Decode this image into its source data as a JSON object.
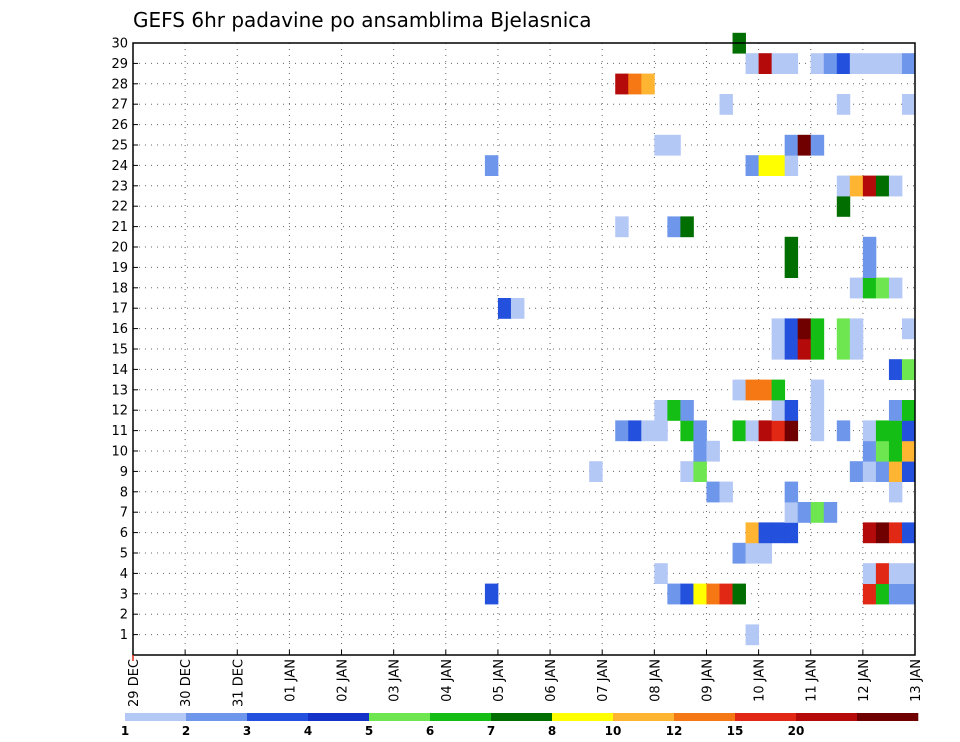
{
  "chart_data": {
    "type": "heatmap",
    "title": "GEFS 6hr padavine po ansamblima Bjelasnica",
    "x_tick_labels": [
      "29 DEC",
      "30 DEC",
      "31 DEC",
      "01 JAN",
      "02 JAN",
      "03 JAN",
      "04 JAN",
      "05 JAN",
      "06 JAN",
      "07 JAN",
      "08 JAN",
      "09 JAN",
      "10 JAN",
      "11 JAN",
      "12 JAN",
      "13 JAN"
    ],
    "y_tick_labels": [
      "1",
      "2",
      "3",
      "4",
      "5",
      "6",
      "7",
      "8",
      "9",
      "10",
      "11",
      "12",
      "13",
      "14",
      "15",
      "16",
      "17",
      "18",
      "19",
      "20",
      "21",
      "22",
      "23",
      "24",
      "25",
      "26",
      "27",
      "28",
      "29",
      "30"
    ],
    "xlim": [
      0,
      60
    ],
    "ylim": [
      0,
      30
    ],
    "grid": true,
    "legend": {
      "placement": "bottom",
      "colors": [
        "#b4c8f5",
        "#6e96eb",
        "#2350dc",
        "#1432c8",
        "#6ee650",
        "#14be14",
        "#006e00",
        "#ffff00",
        "#ffb432",
        "#f57814",
        "#e12814",
        "#b40a0a",
        "#700000"
      ],
      "labels": [
        "1",
        "2",
        "3",
        "4",
        "5",
        "6",
        "7",
        "8",
        "10",
        "12",
        "15",
        "20"
      ]
    },
    "cells": [
      {
        "m": 1,
        "t": 47,
        "v": 1
      },
      {
        "m": 3,
        "t": 27,
        "v": 3
      },
      {
        "m": 3,
        "t": 41,
        "v": 2
      },
      {
        "m": 3,
        "t": 42,
        "v": 3
      },
      {
        "m": 3,
        "t": 43,
        "v": 8
      },
      {
        "m": 3,
        "t": 44,
        "v": 12
      },
      {
        "m": 3,
        "t": 45,
        "v": 15
      },
      {
        "m": 3,
        "t": 46,
        "v": 7
      },
      {
        "m": 3,
        "t": 56,
        "v": 15
      },
      {
        "m": 3,
        "t": 57,
        "v": 6
      },
      {
        "m": 3,
        "t": 58,
        "v": 2
      },
      {
        "m": 3,
        "t": 59,
        "v": 2
      },
      {
        "m": 4,
        "t": 40,
        "v": 1
      },
      {
        "m": 4,
        "t": 56,
        "v": 1
      },
      {
        "m": 4,
        "t": 57,
        "v": 15
      },
      {
        "m": 4,
        "t": 58,
        "v": 1
      },
      {
        "m": 4,
        "t": 59,
        "v": 1
      },
      {
        "m": 5,
        "t": 46,
        "v": 2
      },
      {
        "m": 5,
        "t": 47,
        "v": 1
      },
      {
        "m": 5,
        "t": 48,
        "v": 1
      },
      {
        "m": 6,
        "t": 47,
        "v": 10
      },
      {
        "m": 6,
        "t": 48,
        "v": 3
      },
      {
        "m": 6,
        "t": 49,
        "v": 3
      },
      {
        "m": 6,
        "t": 50,
        "v": 3
      },
      {
        "m": 6,
        "t": 56,
        "v": 20
      },
      {
        "m": 6,
        "t": 57,
        "v": 30
      },
      {
        "m": 6,
        "t": 58,
        "v": 15
      },
      {
        "m": 6,
        "t": 59,
        "v": 3
      },
      {
        "m": 7,
        "t": 50,
        "v": 1
      },
      {
        "m": 7,
        "t": 51,
        "v": 2
      },
      {
        "m": 7,
        "t": 52,
        "v": 5
      },
      {
        "m": 7,
        "t": 53,
        "v": 2
      },
      {
        "m": 8,
        "t": 44,
        "v": 2
      },
      {
        "m": 8,
        "t": 45,
        "v": 1
      },
      {
        "m": 8,
        "t": 50,
        "v": 2
      },
      {
        "m": 8,
        "t": 58,
        "v": 1
      },
      {
        "m": 9,
        "t": 35,
        "v": 1
      },
      {
        "m": 9,
        "t": 42,
        "v": 1
      },
      {
        "m": 9,
        "t": 43,
        "v": 5
      },
      {
        "m": 9,
        "t": 55,
        "v": 2
      },
      {
        "m": 9,
        "t": 56,
        "v": 1
      },
      {
        "m": 9,
        "t": 57,
        "v": 2
      },
      {
        "m": 9,
        "t": 58,
        "v": 10
      },
      {
        "m": 9,
        "t": 59,
        "v": 3
      },
      {
        "m": 10,
        "t": 43,
        "v": 2
      },
      {
        "m": 10,
        "t": 44,
        "v": 1
      },
      {
        "m": 10,
        "t": 56,
        "v": 2
      },
      {
        "m": 10,
        "t": 57,
        "v": 5
      },
      {
        "m": 10,
        "t": 58,
        "v": 6
      },
      {
        "m": 10,
        "t": 59,
        "v": 10
      },
      {
        "m": 11,
        "t": 37,
        "v": 2
      },
      {
        "m": 11,
        "t": 38,
        "v": 3
      },
      {
        "m": 11,
        "t": 39,
        "v": 1
      },
      {
        "m": 11,
        "t": 40,
        "v": 1
      },
      {
        "m": 11,
        "t": 42,
        "v": 6
      },
      {
        "m": 11,
        "t": 43,
        "v": 2
      },
      {
        "m": 11,
        "t": 46,
        "v": 6
      },
      {
        "m": 11,
        "t": 47,
        "v": 1
      },
      {
        "m": 11,
        "t": 48,
        "v": 20
      },
      {
        "m": 11,
        "t": 49,
        "v": 15
      },
      {
        "m": 11,
        "t": 50,
        "v": 30
      },
      {
        "m": 11,
        "t": 52,
        "v": 1
      },
      {
        "m": 11,
        "t": 54,
        "v": 2
      },
      {
        "m": 11,
        "t": 56,
        "v": 1
      },
      {
        "m": 11,
        "t": 57,
        "v": 6
      },
      {
        "m": 11,
        "t": 58,
        "v": 6
      },
      {
        "m": 11,
        "t": 59,
        "v": 3
      },
      {
        "m": 12,
        "t": 40,
        "v": 1
      },
      {
        "m": 12,
        "t": 41,
        "v": 6
      },
      {
        "m": 12,
        "t": 42,
        "v": 2
      },
      {
        "m": 12,
        "t": 49,
        "v": 1
      },
      {
        "m": 12,
        "t": 50,
        "v": 3
      },
      {
        "m": 12,
        "t": 52,
        "v": 1
      },
      {
        "m": 12,
        "t": 58,
        "v": 2
      },
      {
        "m": 12,
        "t": 59,
        "v": 6
      },
      {
        "m": 13,
        "t": 46,
        "v": 1
      },
      {
        "m": 13,
        "t": 47,
        "v": 12
      },
      {
        "m": 13,
        "t": 48,
        "v": 12
      },
      {
        "m": 13,
        "t": 49,
        "v": 6
      },
      {
        "m": 13,
        "t": 52,
        "v": 1
      },
      {
        "m": 14,
        "t": 58,
        "v": 3
      },
      {
        "m": 14,
        "t": 59,
        "v": 5
      },
      {
        "m": 15,
        "t": 49,
        "v": 1
      },
      {
        "m": 15,
        "t": 50,
        "v": 3
      },
      {
        "m": 15,
        "t": 51,
        "v": 20
      },
      {
        "m": 15,
        "t": 52,
        "v": 6
      },
      {
        "m": 15,
        "t": 54,
        "v": 5
      },
      {
        "m": 15,
        "t": 55,
        "v": 1
      },
      {
        "m": 16,
        "t": 49,
        "v": 1
      },
      {
        "m": 16,
        "t": 50,
        "v": 3
      },
      {
        "m": 16,
        "t": 51,
        "v": 30
      },
      {
        "m": 16,
        "t": 52,
        "v": 6
      },
      {
        "m": 16,
        "t": 54,
        "v": 5
      },
      {
        "m": 16,
        "t": 55,
        "v": 1
      },
      {
        "m": 16,
        "t": 59,
        "v": 1
      },
      {
        "m": 17,
        "t": 28,
        "v": 3
      },
      {
        "m": 17,
        "t": 29,
        "v": 1
      },
      {
        "m": 18,
        "t": 55,
        "v": 1
      },
      {
        "m": 18,
        "t": 56,
        "v": 6
      },
      {
        "m": 18,
        "t": 57,
        "v": 5
      },
      {
        "m": 18,
        "t": 58,
        "v": 1
      },
      {
        "m": 19,
        "t": 50,
        "v": 7
      },
      {
        "m": 19,
        "t": 56,
        "v": 2
      },
      {
        "m": 20,
        "t": 50,
        "v": 7
      },
      {
        "m": 20,
        "t": 56,
        "v": 2
      },
      {
        "m": 21,
        "t": 37,
        "v": 1
      },
      {
        "m": 21,
        "t": 41,
        "v": 2
      },
      {
        "m": 21,
        "t": 42,
        "v": 7
      },
      {
        "m": 22,
        "t": 54,
        "v": 7
      },
      {
        "m": 23,
        "t": 54,
        "v": 1
      },
      {
        "m": 23,
        "t": 55,
        "v": 10
      },
      {
        "m": 23,
        "t": 56,
        "v": 20
      },
      {
        "m": 23,
        "t": 57,
        "v": 7
      },
      {
        "m": 23,
        "t": 58,
        "v": 1
      },
      {
        "m": 24,
        "t": 27,
        "v": 2
      },
      {
        "m": 24,
        "t": 47,
        "v": 2
      },
      {
        "m": 24,
        "t": 48,
        "v": 8
      },
      {
        "m": 24,
        "t": 49,
        "v": 8
      },
      {
        "m": 24,
        "t": 50,
        "v": 1
      },
      {
        "m": 25,
        "t": 40,
        "v": 1
      },
      {
        "m": 25,
        "t": 41,
        "v": 1
      },
      {
        "m": 25,
        "t": 50,
        "v": 2
      },
      {
        "m": 25,
        "t": 51,
        "v": 30
      },
      {
        "m": 25,
        "t": 52,
        "v": 2
      },
      {
        "m": 27,
        "t": 45,
        "v": 1
      },
      {
        "m": 27,
        "t": 54,
        "v": 1
      },
      {
        "m": 27,
        "t": 59,
        "v": 1
      },
      {
        "m": 28,
        "t": 37,
        "v": 20
      },
      {
        "m": 28,
        "t": 38,
        "v": 12
      },
      {
        "m": 28,
        "t": 39,
        "v": 10
      },
      {
        "m": 29,
        "t": 47,
        "v": 1
      },
      {
        "m": 29,
        "t": 48,
        "v": 20
      },
      {
        "m": 29,
        "t": 49,
        "v": 1
      },
      {
        "m": 29,
        "t": 50,
        "v": 1
      },
      {
        "m": 29,
        "t": 52,
        "v": 1
      },
      {
        "m": 29,
        "t": 53,
        "v": 2
      },
      {
        "m": 29,
        "t": 54,
        "v": 3
      },
      {
        "m": 29,
        "t": 55,
        "v": 1
      },
      {
        "m": 29,
        "t": 56,
        "v": 1
      },
      {
        "m": 29,
        "t": 57,
        "v": 1
      },
      {
        "m": 29,
        "t": 58,
        "v": 1
      },
      {
        "m": 29,
        "t": 59,
        "v": 2
      },
      {
        "m": 30,
        "t": 46,
        "v": 7
      }
    ]
  }
}
